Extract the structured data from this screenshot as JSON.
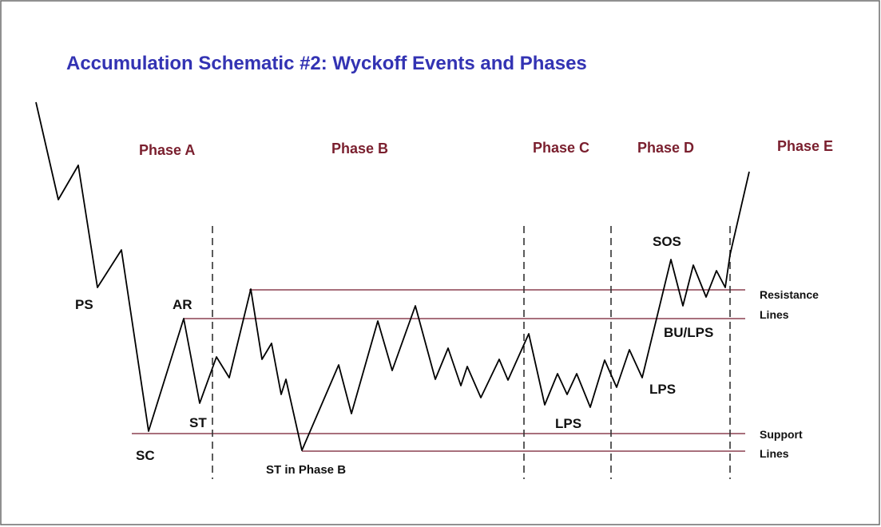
{
  "title": "Accumulation Schematic #2: Wyckoff Events and Phases",
  "phases": [
    "Phase A",
    "Phase B",
    "Phase C",
    "Phase D",
    "Phase E"
  ],
  "events": {
    "ps": "PS",
    "sc": "SC",
    "ar": "AR",
    "st": "ST",
    "st_phase_b": "ST in Phase B",
    "lps_c": "LPS",
    "lps_d": "LPS",
    "sos": "SOS",
    "bu_lps": "BU/LPS"
  },
  "legend": {
    "resistance": [
      "Resistance",
      "Lines"
    ],
    "support": [
      "Support",
      "Lines"
    ]
  },
  "colors": {
    "title": "#3333b3",
    "phase": "#7a1f2e",
    "level_line": "#8b4050",
    "price_line": "#000000",
    "divider": "#333333",
    "border": "#6b6b6b"
  }
}
